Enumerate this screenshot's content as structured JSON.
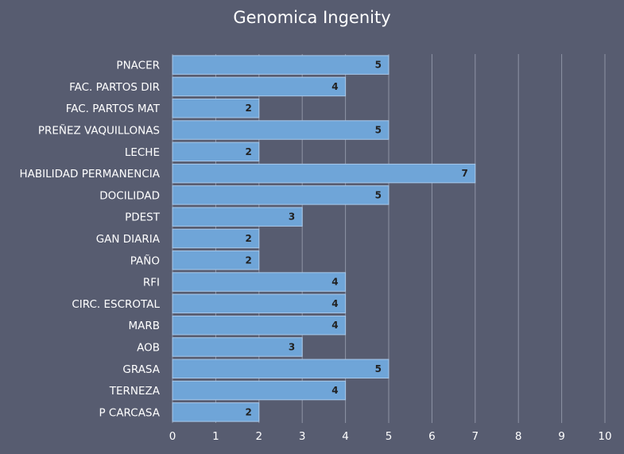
{
  "chart_data": {
    "type": "bar",
    "orientation": "horizontal",
    "title": "Genomica Ingenity",
    "xlabel": "",
    "ylabel": "",
    "xlim": [
      0,
      10
    ],
    "ticks": [
      "0",
      "1",
      "2",
      "3",
      "4",
      "5",
      "6",
      "7",
      "8",
      "9",
      "10"
    ],
    "grid": true,
    "legend": "none",
    "data_labels": true,
    "colors": {
      "bar": "#6fa5d8",
      "bar_border": "#a9c9ea",
      "background": "#575c70",
      "grid": "#8f94a5",
      "text": "#ffffff",
      "label_text": "#222222"
    },
    "categories": [
      "PNACER",
      "FAC. PARTOS DIR",
      "FAC. PARTOS MAT",
      "PREÑEZ VAQUILLONAS",
      "LECHE",
      "HABILIDAD PERMANENCIA",
      "DOCILIDAD",
      "PDEST",
      "GAN DIARIA",
      "PAÑO",
      "RFI",
      "CIRC. ESCROTAL",
      "MARB",
      "AOB",
      "GRASA",
      "TERNEZA",
      "P CARCASA"
    ],
    "values": [
      5,
      4,
      2,
      5,
      2,
      7,
      5,
      3,
      2,
      2,
      4,
      4,
      4,
      3,
      5,
      4,
      2
    ]
  }
}
